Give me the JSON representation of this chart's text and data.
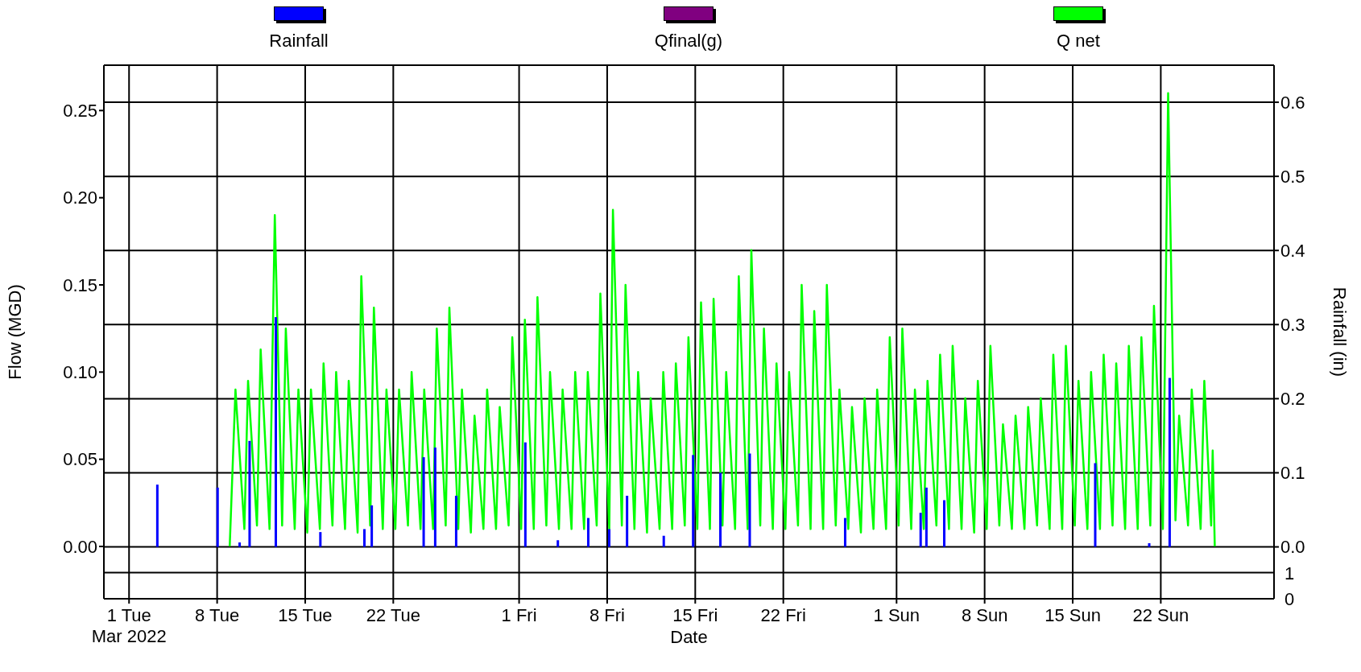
{
  "chart_data": {
    "type": "line",
    "xlabel": "Date",
    "ylabel": "Flow (MGD)",
    "y2label": "Rainfall (in)",
    "legend": "top",
    "grid": true,
    "xlim": [
      "2022-02-27",
      "2022-05-31"
    ],
    "xticks": [
      {
        "value": "2022-03-01",
        "label": "1 Tue\nMar 2022"
      },
      {
        "value": "2022-03-08",
        "label": "8 Tue"
      },
      {
        "value": "2022-03-15",
        "label": "15 Tue"
      },
      {
        "value": "2022-03-22",
        "label": "22 Tue"
      },
      {
        "value": "2022-04-01",
        "label": "1 Fri"
      },
      {
        "value": "2022-04-08",
        "label": "8 Fri"
      },
      {
        "value": "2022-04-15",
        "label": "15 Fri"
      },
      {
        "value": "2022-04-22",
        "label": "22 Fri"
      },
      {
        "value": "2022-05-01",
        "label": "1 Sun"
      },
      {
        "value": "2022-05-08",
        "label": "8 Sun"
      },
      {
        "value": "2022-05-15",
        "label": "15 Sun"
      },
      {
        "value": "2022-05-22",
        "label": "22 Sun"
      }
    ],
    "ylim": [
      -0.03,
      0.276
    ],
    "yticks": [
      {
        "value": 0,
        "label": "0.00"
      },
      {
        "value": 0.05,
        "label": "0.05"
      },
      {
        "value": 0.1,
        "label": "0.10"
      },
      {
        "value": 0.15,
        "label": "0.15"
      },
      {
        "value": 0.2,
        "label": "0.20"
      },
      {
        "value": 0.25,
        "label": "0.25"
      }
    ],
    "y2lim": [
      -0.07,
      0.65
    ],
    "y2ticks": [
      {
        "value": 0,
        "label": "0.0"
      },
      0.1,
      0.2,
      0.3,
      0.4,
      0.5,
      0.6
    ],
    "y3lim": [
      0,
      20.4
    ],
    "y3ticks": [
      0,
      1
    ],
    "series": [
      {
        "name": "Rainfall",
        "type": "bar",
        "axis": "y2",
        "color": "#0000ff",
        "x": [
          "2022-03-03T06:00",
          "2022-03-08T01:00",
          "2022-03-09T19:00",
          "2022-03-10T14:00",
          "2022-03-12T16:00",
          "2022-03-16T05:00",
          "2022-03-19T17:00",
          "2022-03-20T07:00",
          "2022-03-24T10:00",
          "2022-03-25T08:00",
          "2022-03-27T00:00",
          "2022-04-01T12:00",
          "2022-04-04T02:00",
          "2022-04-06T12:00",
          "2022-04-08T04:00",
          "2022-04-09T14:00",
          "2022-04-12T12:00",
          "2022-04-14T20:00",
          "2022-04-17T00:00",
          "2022-04-19T08:00",
          "2022-04-26T22:00",
          "2022-05-02T22:00",
          "2022-05-03T09:00",
          "2022-05-04T19:00",
          "2022-05-16T19:00",
          "2022-05-21T02:00",
          "2022-05-22T17:00"
        ],
        "values": [
          0.084,
          0.08,
          0.006,
          0.143,
          0.31,
          0.02,
          0.024,
          0.056,
          0.121,
          0.134,
          0.069,
          0.141,
          0.009,
          0.039,
          0.024,
          0.069,
          0.015,
          0.124,
          0.1,
          0.126,
          0.039,
          0.046,
          0.08,
          0.063,
          0.113,
          0.005,
          0.228
        ]
      },
      {
        "name": "Qfinal(g)",
        "color": "#800080"
      },
      {
        "name": "Q net",
        "color": "#00ff00",
        "x": [
          "2022-03-09T00:00",
          "2022-03-09T11:00",
          "2022-03-10T04:00",
          "2022-03-10T11:00",
          "2022-03-11T04:00",
          "2022-03-11T11:00",
          "2022-03-12T04:00",
          "2022-03-12T14:00",
          "2022-03-13T04:00",
          "2022-03-13T11:00",
          "2022-03-14T04:00",
          "2022-03-14T11:00",
          "2022-03-15T04:00",
          "2022-03-15T11:00",
          "2022-03-16T04:00",
          "2022-03-16T11:00",
          "2022-03-17T04:00",
          "2022-03-17T11:00",
          "2022-03-18T04:00",
          "2022-03-18T11:00",
          "2022-03-19T04:00",
          "2022-03-19T11:00",
          "2022-03-20T04:00",
          "2022-03-20T11:00",
          "2022-03-21T04:00",
          "2022-03-21T11:00",
          "2022-03-22T04:00",
          "2022-03-22T11:00",
          "2022-03-23T04:00",
          "2022-03-23T11:00",
          "2022-03-24T04:00",
          "2022-03-24T11:00",
          "2022-03-25T04:00",
          "2022-03-25T11:00",
          "2022-03-26T04:00",
          "2022-03-26T11:00",
          "2022-03-27T04:00",
          "2022-03-27T11:00",
          "2022-03-28T04:00",
          "2022-03-28T11:00",
          "2022-03-29T04:00",
          "2022-03-29T11:00",
          "2022-03-30T04:00",
          "2022-03-30T11:00",
          "2022-03-31T04:00",
          "2022-03-31T11:00",
          "2022-04-01T04:00",
          "2022-04-01T11:00",
          "2022-04-02T04:00",
          "2022-04-02T11:00",
          "2022-04-03T04:00",
          "2022-04-03T11:00",
          "2022-04-04T04:00",
          "2022-04-04T11:00",
          "2022-04-05T04:00",
          "2022-04-05T11:00",
          "2022-04-06T04:00",
          "2022-04-06T11:00",
          "2022-04-07T04:00",
          "2022-04-07T11:00",
          "2022-04-08T04:00",
          "2022-04-08T11:00",
          "2022-04-09T04:00",
          "2022-04-09T11:00",
          "2022-04-10T04:00",
          "2022-04-10T11:00",
          "2022-04-11T04:00",
          "2022-04-11T11:00",
          "2022-04-12T04:00",
          "2022-04-12T11:00",
          "2022-04-13T04:00",
          "2022-04-13T11:00",
          "2022-04-14T04:00",
          "2022-04-14T11:00",
          "2022-04-15T04:00",
          "2022-04-15T11:00",
          "2022-04-16T04:00",
          "2022-04-16T11:00",
          "2022-04-17T04:00",
          "2022-04-17T11:00",
          "2022-04-18T04:00",
          "2022-04-18T11:00",
          "2022-04-19T04:00",
          "2022-04-19T11:00",
          "2022-04-20T04:00",
          "2022-04-20T11:00",
          "2022-04-21T04:00",
          "2022-04-21T11:00",
          "2022-04-22T04:00",
          "2022-04-22T11:00",
          "2022-04-23T04:00",
          "2022-04-23T11:00",
          "2022-04-24T04:00",
          "2022-04-24T11:00",
          "2022-04-25T04:00",
          "2022-04-25T11:00",
          "2022-04-26T04:00",
          "2022-04-26T11:00",
          "2022-04-27T04:00",
          "2022-04-27T11:00",
          "2022-04-28T04:00",
          "2022-04-28T11:00",
          "2022-04-29T04:00",
          "2022-04-29T11:00",
          "2022-04-30T04:00",
          "2022-04-30T11:00",
          "2022-05-01T04:00",
          "2022-05-01T11:00",
          "2022-05-02T04:00",
          "2022-05-02T11:00",
          "2022-05-03T04:00",
          "2022-05-03T11:00",
          "2022-05-04T04:00",
          "2022-05-04T11:00",
          "2022-05-05T04:00",
          "2022-05-05T11:00",
          "2022-05-06T04:00",
          "2022-05-06T11:00",
          "2022-05-07T04:00",
          "2022-05-07T11:00",
          "2022-05-08T04:00",
          "2022-05-08T11:00",
          "2022-05-09T04:00",
          "2022-05-09T11:00",
          "2022-05-10T04:00",
          "2022-05-10T11:00",
          "2022-05-11T04:00",
          "2022-05-11T11:00",
          "2022-05-12T04:00",
          "2022-05-12T11:00",
          "2022-05-13T04:00",
          "2022-05-13T11:00",
          "2022-05-14T04:00",
          "2022-05-14T11:00",
          "2022-05-15T04:00",
          "2022-05-15T11:00",
          "2022-05-16T04:00",
          "2022-05-16T11:00",
          "2022-05-17T04:00",
          "2022-05-17T11:00",
          "2022-05-18T04:00",
          "2022-05-18T11:00",
          "2022-05-19T04:00",
          "2022-05-19T11:00",
          "2022-05-20T04:00",
          "2022-05-20T11:00",
          "2022-05-21T04:00",
          "2022-05-21T11:00",
          "2022-05-22T04:00",
          "2022-05-22T14:00",
          "2022-05-23T04:00",
          "2022-05-23T11:00",
          "2022-05-24T04:00",
          "2022-05-24T11:00",
          "2022-05-25T04:00",
          "2022-05-25T11:00",
          "2022-05-26T00:00",
          "2022-05-26T03:00",
          "2022-05-26T07:00"
        ],
        "values": [
          0,
          0.09,
          0.01,
          0.095,
          0.012,
          0.113,
          0.01,
          0.19,
          0.012,
          0.125,
          0.01,
          0.09,
          0.008,
          0.09,
          0.01,
          0.105,
          0.012,
          0.1,
          0.01,
          0.095,
          0.008,
          0.155,
          0.012,
          0.137,
          0.01,
          0.09,
          0.01,
          0.09,
          0.012,
          0.1,
          0.01,
          0.09,
          0.01,
          0.125,
          0.012,
          0.137,
          0.01,
          0.09,
          0.008,
          0.075,
          0.01,
          0.09,
          0.01,
          0.08,
          0.012,
          0.12,
          0.01,
          0.13,
          0.01,
          0.143,
          0.012,
          0.1,
          0.01,
          0.09,
          0.01,
          0.1,
          0.01,
          0.1,
          0.012,
          0.145,
          0.01,
          0.193,
          0.012,
          0.15,
          0.01,
          0.1,
          0.008,
          0.085,
          0.01,
          0.1,
          0.01,
          0.105,
          0.012,
          0.12,
          0.01,
          0.14,
          0.01,
          0.142,
          0.012,
          0.1,
          0.01,
          0.155,
          0.01,
          0.17,
          0.012,
          0.125,
          0.01,
          0.105,
          0.01,
          0.1,
          0.012,
          0.15,
          0.01,
          0.135,
          0.01,
          0.15,
          0.012,
          0.09,
          0.01,
          0.08,
          0.008,
          0.085,
          0.01,
          0.09,
          0.01,
          0.12,
          0.012,
          0.125,
          0.01,
          0.09,
          0.01,
          0.095,
          0.012,
          0.11,
          0.01,
          0.115,
          0.01,
          0.085,
          0.008,
          0.095,
          0.01,
          0.115,
          0.012,
          0.07,
          0.01,
          0.075,
          0.01,
          0.08,
          0.012,
          0.085,
          0.01,
          0.11,
          0.01,
          0.115,
          0.012,
          0.095,
          0.01,
          0.1,
          0.01,
          0.11,
          0.012,
          0.105,
          0.01,
          0.115,
          0.01,
          0.12,
          0.012,
          0.138,
          0.01,
          0.26,
          0.015,
          0.075,
          0.012,
          0.09,
          0.01,
          0.095,
          0.012,
          0.055,
          0
        ]
      }
    ]
  }
}
